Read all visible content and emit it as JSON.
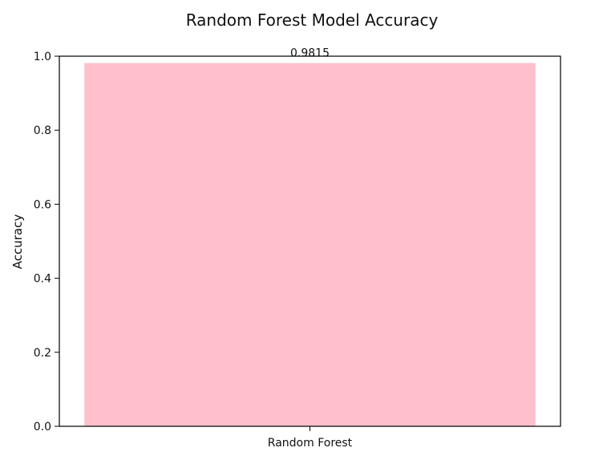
{
  "chart_data": {
    "type": "bar",
    "title": "Random Forest Model Accuracy",
    "xlabel": "",
    "ylabel": "Accuracy",
    "categories": [
      "Random Forest"
    ],
    "values": [
      0.9815
    ],
    "data_labels": [
      "0.9815"
    ],
    "y_ticks": [
      "0.0",
      "0.2",
      "0.4",
      "0.6",
      "0.8",
      "1.0"
    ],
    "ylim": [
      0,
      1.0
    ],
    "grid": false,
    "legend": "none",
    "colors": {
      "bar": "#ffc0cb",
      "axis": "#000000",
      "text": "#111111"
    }
  }
}
